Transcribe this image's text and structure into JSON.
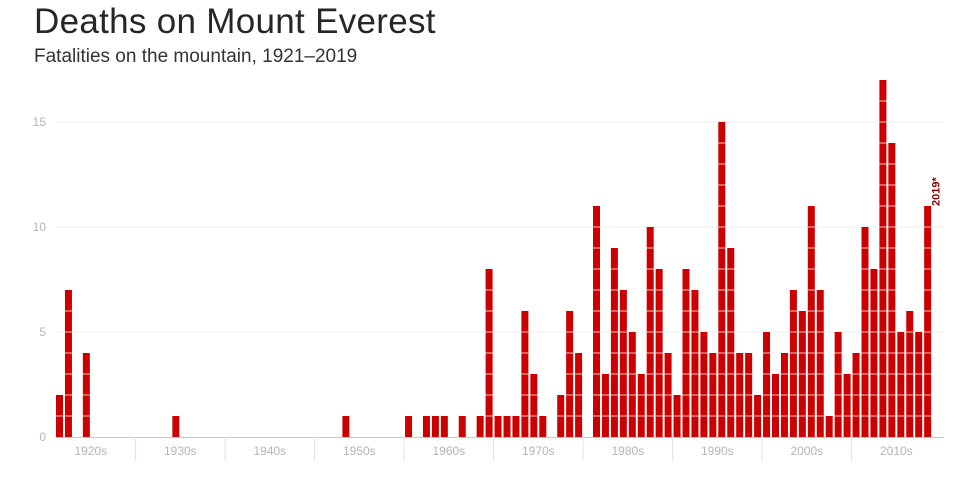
{
  "header": {
    "title": "Deaths on Mount Everest",
    "subtitle": "Fatalities on the mountain, 1921–2019"
  },
  "colors": {
    "bar": "#cc0000",
    "grid": "#eeeeee",
    "axis": "#c8c8c8",
    "annotation": "#8b0000"
  },
  "chart_data": {
    "type": "bar",
    "title": "Deaths on Mount Everest",
    "subtitle": "Fatalities on the mountain, 1921–2019",
    "xlabel": "",
    "ylabel": "",
    "ylim": [
      0,
      17
    ],
    "yticks": [
      0,
      5,
      10,
      15
    ],
    "grid": true,
    "decade_labels": [
      "1920s",
      "1930s",
      "1940s",
      "1950s",
      "1960s",
      "1970s",
      "1980s",
      "1990s",
      "2000s",
      "2010s"
    ],
    "annotation": {
      "year": 2019,
      "text": "2019*"
    },
    "years": [
      1921,
      1922,
      1923,
      1924,
      1925,
      1926,
      1927,
      1928,
      1929,
      1930,
      1931,
      1932,
      1933,
      1934,
      1935,
      1936,
      1937,
      1938,
      1939,
      1940,
      1941,
      1942,
      1943,
      1944,
      1945,
      1946,
      1947,
      1948,
      1949,
      1950,
      1951,
      1952,
      1953,
      1954,
      1955,
      1956,
      1957,
      1958,
      1959,
      1960,
      1961,
      1962,
      1963,
      1964,
      1965,
      1966,
      1967,
      1968,
      1969,
      1970,
      1971,
      1972,
      1973,
      1974,
      1975,
      1976,
      1977,
      1978,
      1979,
      1980,
      1981,
      1982,
      1983,
      1984,
      1985,
      1986,
      1987,
      1988,
      1989,
      1990,
      1991,
      1992,
      1993,
      1994,
      1995,
      1996,
      1997,
      1998,
      1999,
      2000,
      2001,
      2002,
      2003,
      2004,
      2005,
      2006,
      2007,
      2008,
      2009,
      2010,
      2011,
      2012,
      2013,
      2014,
      2015,
      2016,
      2017,
      2018,
      2019
    ],
    "values": [
      2,
      7,
      0,
      4,
      0,
      0,
      0,
      0,
      0,
      0,
      0,
      0,
      0,
      1,
      0,
      0,
      0,
      0,
      0,
      0,
      0,
      0,
      0,
      0,
      0,
      0,
      0,
      0,
      0,
      0,
      0,
      0,
      1,
      0,
      0,
      0,
      0,
      0,
      0,
      1,
      0,
      1,
      1,
      1,
      0,
      1,
      0,
      1,
      8,
      1,
      1,
      1,
      6,
      3,
      1,
      0,
      2,
      6,
      4,
      0,
      11,
      3,
      9,
      7,
      5,
      3,
      10,
      8,
      4,
      2,
      8,
      7,
      5,
      4,
      15,
      9,
      4,
      4,
      2,
      5,
      3,
      4,
      7,
      6,
      11,
      7,
      1,
      5,
      3,
      4,
      10,
      8,
      17,
      14,
      5,
      6,
      5,
      11,
      0
    ]
  }
}
